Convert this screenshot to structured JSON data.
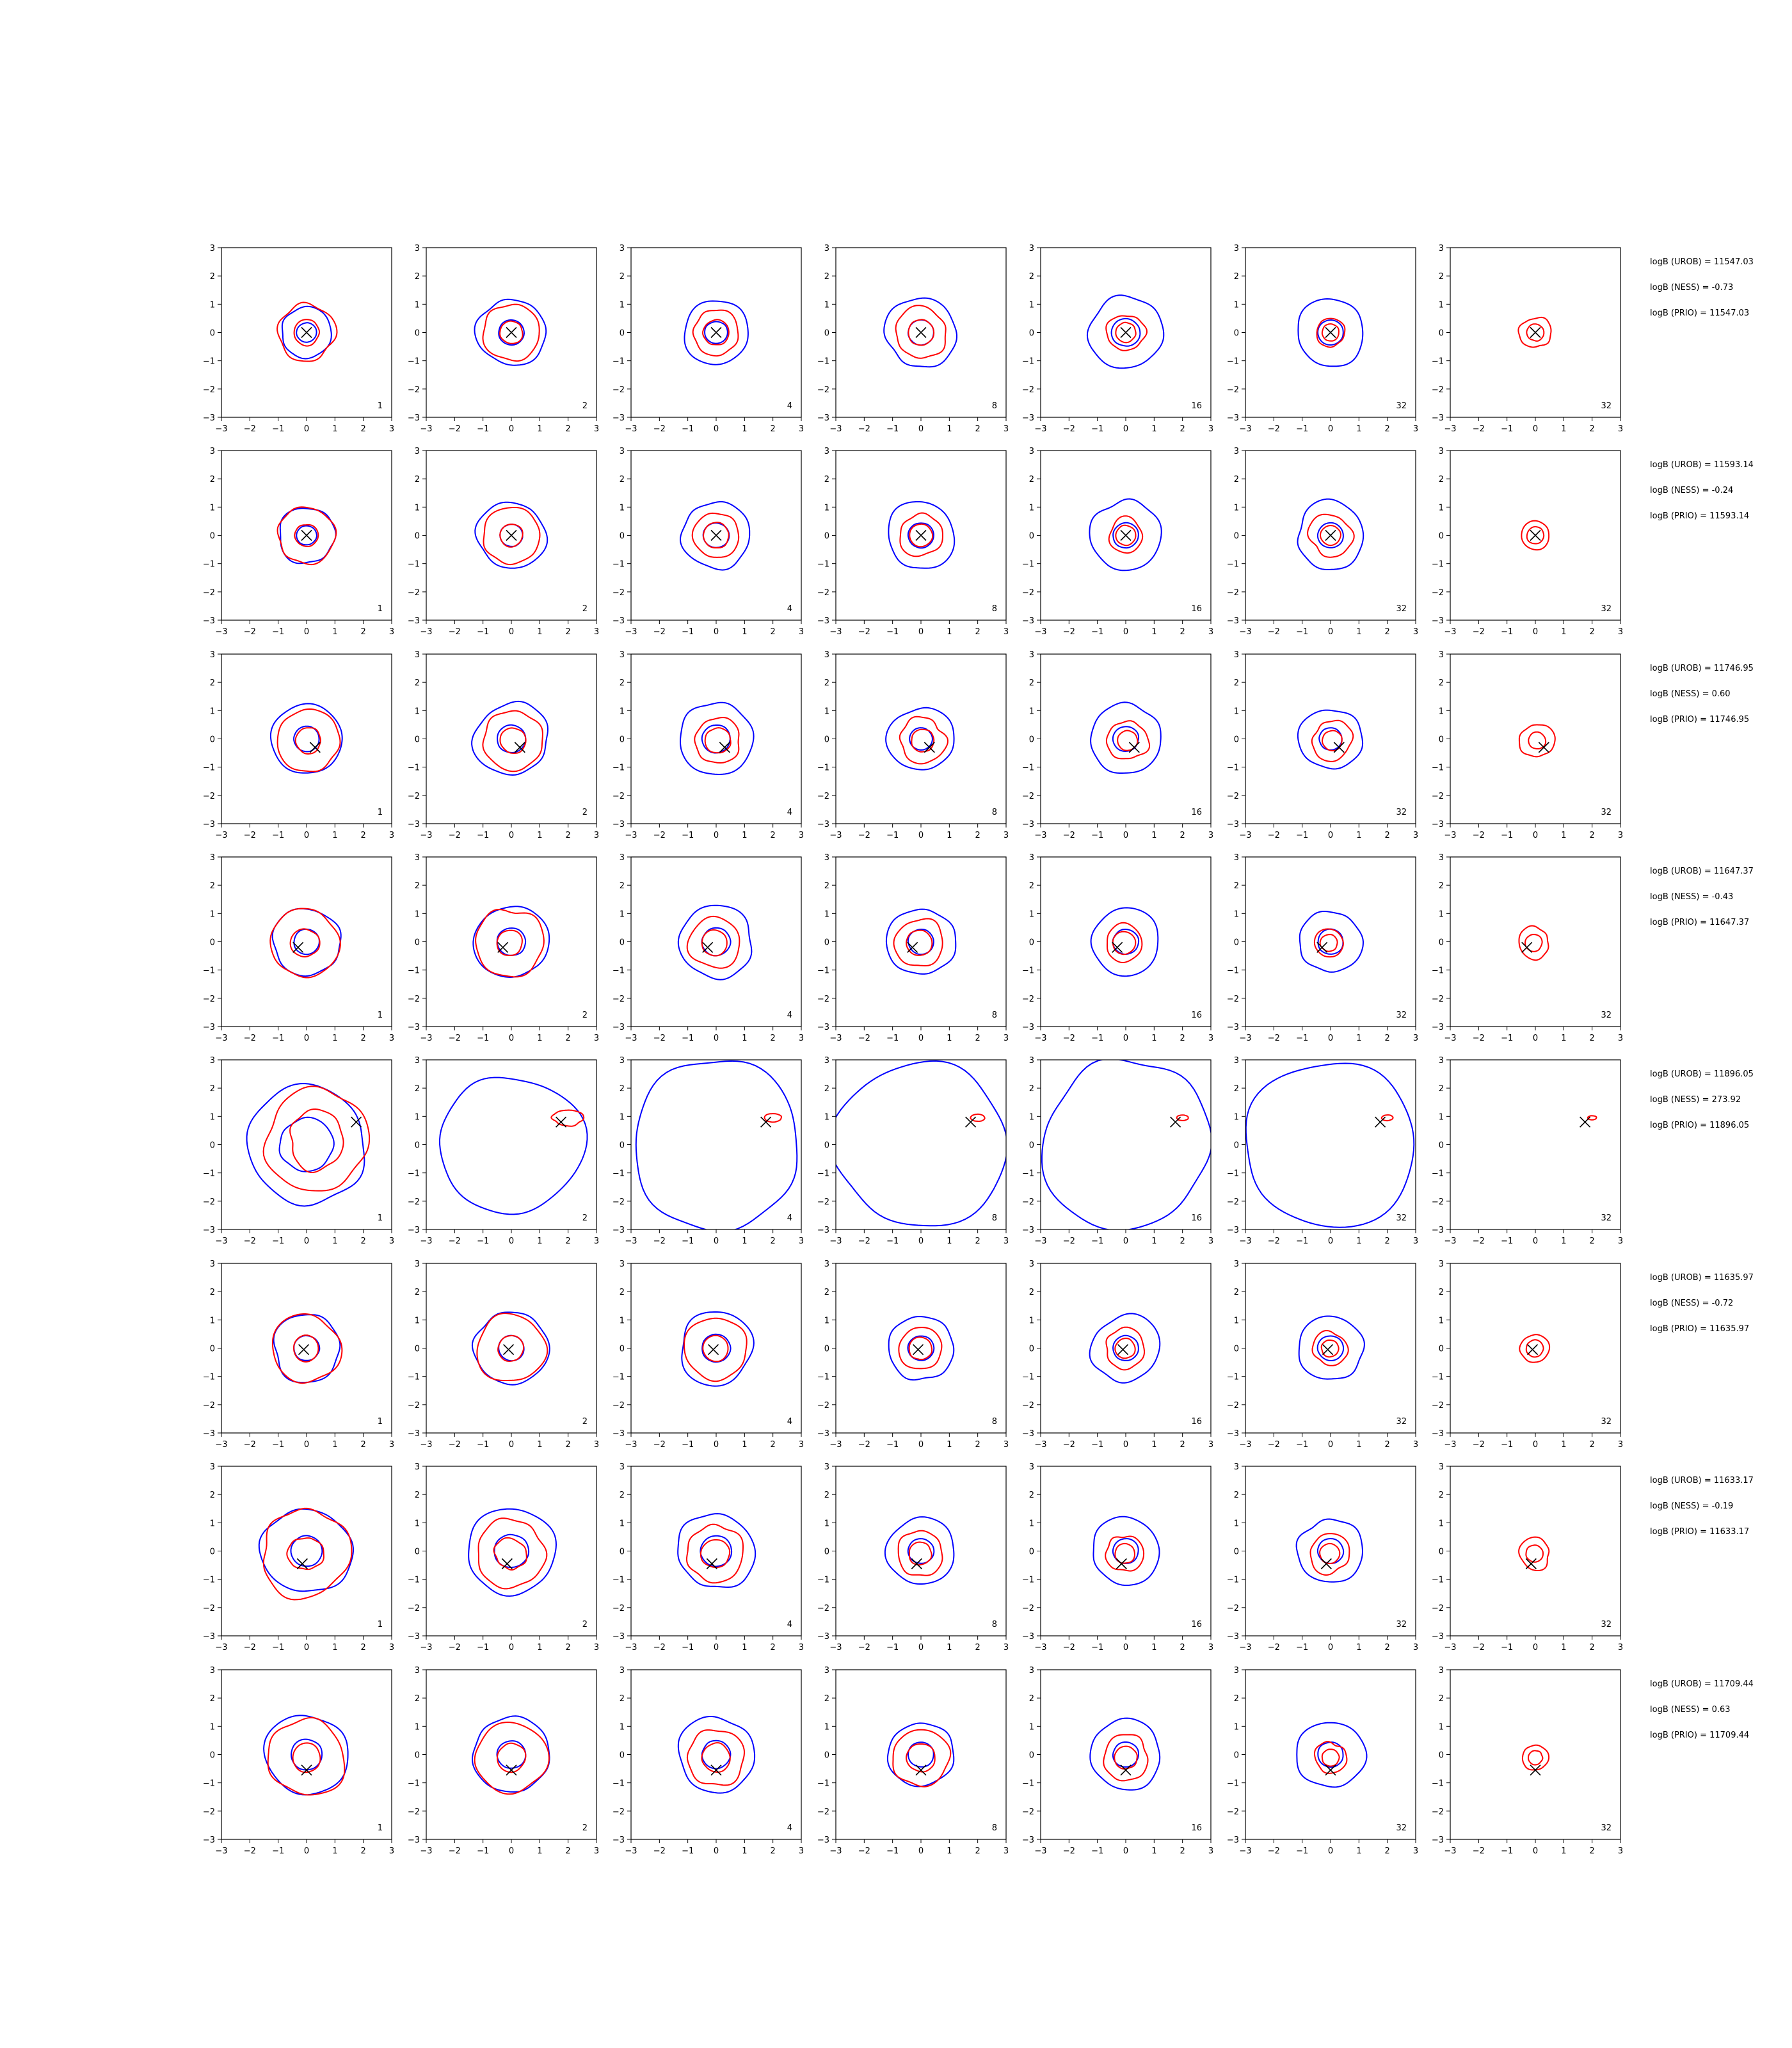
{
  "figure": {
    "rows": 8,
    "cols": 7,
    "axis_ticks": [
      -3,
      -2,
      -1,
      0,
      1,
      2,
      3
    ],
    "axis_range": [
      -3,
      3
    ],
    "colors": {
      "series_a": "#0000ff",
      "series_b": "#ff0000",
      "marker": "#000000"
    }
  },
  "chart_data": {
    "type": "contour-grid",
    "xlim": [
      -3,
      3
    ],
    "ylim": [
      -3,
      3
    ],
    "panel_labels": [
      "1",
      "2",
      "4",
      "8",
      "16",
      "32",
      "32"
    ],
    "rows": [
      {
        "marker": [
          0.0,
          0.0
        ],
        "logb": [
          "logB (UROB) = 11547.03",
          "logB (NESS) = -0.73",
          "logB (PRIO) = 11547.03"
        ],
        "panels": [
          {
            "blue": [
              0.9,
              0.35
            ],
            "red": [
              1.0,
              0.45
            ]
          },
          {
            "blue": [
              1.2,
              0.45
            ],
            "red": [
              1.0,
              0.4
            ]
          },
          {
            "blue": [
              1.15,
              0.4
            ],
            "red": [
              0.8,
              0.45
            ]
          },
          {
            "blue": [
              1.25,
              0.45
            ],
            "red": [
              0.9,
              0.45
            ]
          },
          {
            "blue": [
              1.3,
              0.5
            ],
            "red": [
              0.65,
              0.35
            ]
          },
          {
            "blue": [
              1.2,
              0.45
            ],
            "red": [
              0.5,
              0.3
            ]
          },
          {
            "blue": [],
            "red": [
              0.55,
              0.3
            ]
          }
        ]
      },
      {
        "marker": [
          0.0,
          0.0
        ],
        "logb": [
          "logB (UROB) = 11593.14",
          "logB (NESS) = -0.24",
          "logB (PRIO) = 11593.14"
        ],
        "panels": [
          {
            "blue": [
              1.0,
              0.35
            ],
            "red": [
              1.0,
              0.4
            ]
          },
          {
            "blue": [
              1.2,
              0.4
            ],
            "red": [
              1.0,
              0.4
            ]
          },
          {
            "blue": [
              1.2,
              0.45
            ],
            "red": [
              0.8,
              0.45
            ]
          },
          {
            "blue": [
              1.2,
              0.45
            ],
            "red": [
              0.75,
              0.4
            ]
          },
          {
            "blue": [
              1.25,
              0.45
            ],
            "red": [
              0.6,
              0.35
            ]
          },
          {
            "blue": [
              1.2,
              0.45
            ],
            "red": [
              0.75,
              0.35
            ]
          },
          {
            "blue": [],
            "red": [
              0.5,
              0.3
            ]
          }
        ]
      },
      {
        "marker": [
          0.3,
          -0.3
        ],
        "logb": [
          "logB (UROB) = 11746.95",
          "logB (NESS) = 0.60",
          "logB (PRIO) = 11746.95"
        ],
        "panels": [
          {
            "blue": [
              1.25,
              0.45
            ],
            "red": [
              1.1,
              0.45
            ]
          },
          {
            "blue": [
              1.3,
              0.5
            ],
            "red": [
              1.05,
              0.45
            ]
          },
          {
            "blue": [
              1.3,
              0.5
            ],
            "red": [
              0.8,
              0.45
            ]
          },
          {
            "blue": [
              1.15,
              0.4
            ],
            "red": [
              0.8,
              0.4
            ]
          },
          {
            "blue": [
              1.25,
              0.45
            ],
            "red": [
              0.7,
              0.35
            ]
          },
          {
            "blue": [
              1.1,
              0.4
            ],
            "red": [
              0.7,
              0.35
            ]
          },
          {
            "blue": [],
            "red": [
              0.6,
              0.3
            ]
          }
        ]
      },
      {
        "marker": [
          -0.3,
          -0.2
        ],
        "logb": [
          "logB (UROB) = 11647.37",
          "logB (NESS) = -0.43",
          "logB (PRIO) = 11647.37"
        ],
        "panels": [
          {
            "blue": [
              1.2,
              0.45
            ],
            "red": [
              1.2,
              0.5
            ]
          },
          {
            "blue": [
              1.3,
              0.5
            ],
            "red": [
              1.2,
              0.45
            ]
          },
          {
            "blue": [
              1.3,
              0.5
            ],
            "red": [
              0.9,
              0.45
            ]
          },
          {
            "blue": [
              1.2,
              0.45
            ],
            "red": [
              0.85,
              0.45
            ]
          },
          {
            "blue": [
              1.2,
              0.45
            ],
            "red": [
              0.65,
              0.4
            ]
          },
          {
            "blue": [
              1.1,
              0.45
            ],
            "red": [
              0.5,
              0.3
            ]
          },
          {
            "blue": [],
            "red": [
              0.55,
              0.3
            ]
          }
        ]
      },
      {
        "marker": [
          1.75,
          0.8
        ],
        "logb": [
          "logB (UROB) = 11896.05",
          "logB (NESS) = 273.92",
          "logB (PRIO) = 11896.05"
        ],
        "panels": [
          {
            "blue": [
              2.1,
              0.95
            ],
            "red": [
              1.8,
              1.0
            ]
          },
          {
            "blue": [
              2.5
            ],
            "red": [
              0.55
            ]
          },
          {
            "blue": [
              3.0
            ],
            "red": [
              0.3
            ]
          },
          {
            "blue": [
              3.0
            ],
            "red": [
              0.25
            ]
          },
          {
            "blue": [
              3.0
            ],
            "red": [
              0.2
            ]
          },
          {
            "blue": [
              3.0
            ],
            "red": [
              0.2
            ]
          },
          {
            "blue": [],
            "red": [
              0.15
            ]
          }
        ]
      },
      {
        "marker": [
          -0.1,
          -0.05
        ],
        "logb": [
          "logB (UROB) = 11635.97",
          "logB (NESS) = -0.72",
          "logB (PRIO) = 11635.97"
        ],
        "panels": [
          {
            "blue": [
              1.2,
              0.45
            ],
            "red": [
              1.2,
              0.45
            ]
          },
          {
            "blue": [
              1.3,
              0.45
            ],
            "red": [
              1.2,
              0.45
            ]
          },
          {
            "blue": [
              1.3,
              0.5
            ],
            "red": [
              1.1,
              0.45
            ]
          },
          {
            "blue": [
              1.15,
              0.45
            ],
            "red": [
              0.75,
              0.4
            ]
          },
          {
            "blue": [
              1.2,
              0.45
            ],
            "red": [
              0.7,
              0.35
            ]
          },
          {
            "blue": [
              1.15,
              0.45
            ],
            "red": [
              0.6,
              0.3
            ]
          },
          {
            "blue": [],
            "red": [
              0.5,
              0.3
            ]
          }
        ]
      },
      {
        "marker": [
          -0.15,
          -0.45
        ],
        "logb": [
          "logB (UROB) = 11633.17",
          "logB (NESS) = -0.19",
          "logB (PRIO) = 11633.17"
        ],
        "panels": [
          {
            "blue": [
              1.55,
              0.55
            ],
            "red": [
              1.55,
              0.6
            ]
          },
          {
            "blue": [
              1.55,
              0.6
            ],
            "red": [
              1.2,
              0.55
            ]
          },
          {
            "blue": [
              1.35,
              0.55
            ],
            "red": [
              1.0,
              0.5
            ]
          },
          {
            "blue": [
              1.2,
              0.45
            ],
            "red": [
              0.8,
              0.4
            ]
          },
          {
            "blue": [
              1.2,
              0.45
            ],
            "red": [
              0.65,
              0.35
            ]
          },
          {
            "blue": [
              1.15,
              0.45
            ],
            "red": [
              0.7,
              0.35
            ]
          },
          {
            "blue": [],
            "red": [
              0.55,
              0.3
            ]
          }
        ]
      },
      {
        "marker": [
          0.0,
          -0.55
        ],
        "logb": [
          "logB (UROB) = 11709.44",
          "logB (NESS) = 0.63",
          "logB (PRIO) = 11709.44"
        ],
        "panels": [
          {
            "blue": [
              1.45,
              0.55
            ],
            "red": [
              1.35,
              0.5
            ]
          },
          {
            "blue": [
              1.35,
              0.5
            ],
            "red": [
              1.25,
              0.5
            ]
          },
          {
            "blue": [
              1.35,
              0.5
            ],
            "red": [
              1.0,
              0.5
            ]
          },
          {
            "blue": [
              1.15,
              0.45
            ],
            "red": [
              1.0,
              0.5
            ]
          },
          {
            "blue": [
              1.25,
              0.45
            ],
            "red": [
              0.8,
              0.4
            ]
          },
          {
            "blue": [
              1.2,
              0.45
            ],
            "red": [
              0.55,
              0.3
            ]
          },
          {
            "blue": [],
            "red": [
              0.45,
              0.25
            ]
          }
        ]
      }
    ]
  }
}
